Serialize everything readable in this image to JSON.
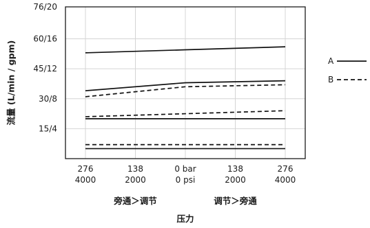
{
  "chart_data": {
    "type": "line",
    "xlabel": "压力",
    "ylabel": "流量 (L/min / gpm)",
    "xlim": [
      -4800,
      4800
    ],
    "ylim": [
      0,
      76
    ],
    "x_ticks": [
      {
        "x": -4000,
        "line1": "276",
        "line2": "4000"
      },
      {
        "x": -2000,
        "line1": "138",
        "line2": "2000"
      },
      {
        "x": 0,
        "line1": "0 bar",
        "line2": "0 psi"
      },
      {
        "x": 2000,
        "line1": "138",
        "line2": "2000"
      },
      {
        "x": 4000,
        "line1": "276",
        "line2": "4000"
      }
    ],
    "y_ticks": [
      {
        "y": 15,
        "label": "15/4"
      },
      {
        "y": 30,
        "label": "30/8"
      },
      {
        "y": 45,
        "label": "45/12"
      },
      {
        "y": 60,
        "label": "60/16"
      },
      {
        "y": 76,
        "label": "76/20"
      }
    ],
    "region_labels": {
      "left": "旁通＞调节",
      "right": "调节＞旁通"
    },
    "grid": true,
    "legend_position": "right",
    "series": [
      {
        "name": "A",
        "style": "solid",
        "x": [
          -4000,
          0,
          4000
        ],
        "y": [
          53,
          54.5,
          56
        ]
      },
      {
        "name": "A",
        "style": "solid",
        "x": [
          -4000,
          0,
          4000
        ],
        "y": [
          34,
          38,
          39
        ]
      },
      {
        "name": "A",
        "style": "solid",
        "x": [
          -4000,
          0,
          4000
        ],
        "y": [
          20,
          20,
          20
        ]
      },
      {
        "name": "A",
        "style": "solid",
        "x": [
          -4000,
          0,
          4000
        ],
        "y": [
          5,
          5,
          5
        ]
      },
      {
        "name": "B",
        "style": "dashed",
        "x": [
          -4000,
          0,
          4000
        ],
        "y": [
          31,
          36,
          37
        ]
      },
      {
        "name": "B",
        "style": "dashed",
        "x": [
          -4000,
          0,
          4000
        ],
        "y": [
          21,
          22.5,
          24
        ]
      },
      {
        "name": "B",
        "style": "dashed",
        "x": [
          -4000,
          0,
          4000
        ],
        "y": [
          7,
          7,
          7
        ]
      }
    ],
    "legend": [
      {
        "label": "A",
        "style": "solid"
      },
      {
        "label": "B",
        "style": "dashed"
      }
    ]
  }
}
